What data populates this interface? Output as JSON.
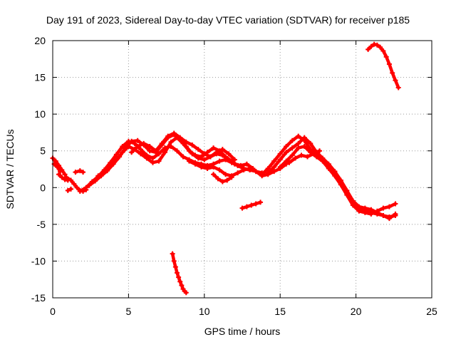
{
  "chart_data": {
    "type": "scatter",
    "title": "Day 191 of 2023, Sidereal Day-to-day VTEC variation (SDTVAR) for receiver p185",
    "xlabel": "GPS time / hours",
    "ylabel": "SDTVAR / TECUs",
    "xlim": [
      0,
      25
    ],
    "ylim": [
      -15,
      20
    ],
    "xticks": [
      0,
      5,
      10,
      15,
      20,
      25
    ],
    "yticks": [
      -15,
      -10,
      -5,
      0,
      5,
      10,
      15,
      20
    ],
    "grid": true,
    "marker": "+",
    "color": "#ff0000",
    "series": [
      {
        "name": "arc-a-early",
        "x": [
          0.0,
          0.2,
          0.4,
          0.6,
          0.8
        ],
        "y": [
          4.0,
          3.6,
          3.0,
          2.4,
          1.8
        ]
      },
      {
        "name": "arc-a-lower",
        "x": [
          0.1,
          0.3,
          0.5
        ],
        "y": [
          3.2,
          2.8,
          2.2
        ]
      },
      {
        "name": "arc-b",
        "x": [
          0.4,
          0.6,
          0.8,
          1.0
        ],
        "y": [
          1.8,
          1.4,
          1.1,
          1.0
        ]
      },
      {
        "name": "arc-c",
        "x": [
          0.9,
          1.2,
          1.4,
          1.6,
          1.8,
          2.0,
          2.2
        ],
        "y": [
          1.4,
          1.0,
          0.5,
          0.0,
          -0.4,
          -0.5,
          -0.3
        ]
      },
      {
        "name": "arc-c2",
        "x": [
          1.0,
          1.2
        ],
        "y": [
          -0.4,
          -0.2
        ]
      },
      {
        "name": "arc-d",
        "x": [
          1.5,
          1.8,
          2.0
        ],
        "y": [
          2.1,
          2.3,
          2.1
        ]
      },
      {
        "name": "arc-main-rise-1",
        "x": [
          1.8,
          2.2,
          2.6,
          3.0,
          3.4,
          3.8,
          4.2,
          4.6,
          5.0,
          5.4,
          5.8,
          6.2,
          6.6,
          7.0,
          7.4,
          7.8,
          8.2,
          8.6,
          9.0,
          9.4,
          9.8,
          10.2,
          10.6,
          11.0,
          11.4,
          11.8,
          12.2,
          12.6,
          13.0,
          13.4,
          13.8
        ],
        "y": [
          -0.5,
          0.0,
          0.8,
          1.5,
          2.4,
          3.4,
          4.5,
          5.6,
          6.3,
          6.0,
          5.2,
          4.4,
          4.0,
          4.6,
          5.4,
          5.6,
          5.0,
          4.2,
          3.8,
          3.4,
          3.2,
          3.0,
          3.2,
          3.6,
          3.8,
          3.4,
          3.0,
          2.6,
          2.4,
          2.2,
          2.0
        ]
      },
      {
        "name": "arc-main-rise-2",
        "x": [
          2.4,
          2.8,
          3.2,
          3.6,
          4.0,
          4.4,
          4.8,
          5.2,
          5.6,
          6.0,
          6.4,
          6.8,
          7.2,
          7.6,
          8.0,
          8.4,
          8.8,
          9.2,
          9.6,
          10.0,
          10.4,
          10.8,
          11.2,
          11.6,
          12.0,
          12.4,
          12.8,
          13.2
        ],
        "y": [
          0.3,
          0.9,
          1.6,
          2.3,
          3.2,
          4.2,
          5.4,
          6.3,
          6.4,
          5.8,
          5.0,
          4.8,
          5.8,
          6.8,
          7.2,
          6.6,
          5.6,
          4.6,
          4.0,
          3.8,
          4.2,
          4.6,
          4.4,
          3.8,
          3.2,
          3.0,
          3.2,
          2.6
        ]
      },
      {
        "name": "arc-main-rise-3",
        "x": [
          3.0,
          3.4,
          3.8,
          4.2,
          4.6,
          5.0,
          5.4,
          5.8,
          6.2,
          6.6,
          7.0,
          7.4,
          7.8,
          8.2,
          8.6,
          9.0,
          9.4,
          9.8,
          10.2,
          10.6,
          11.0,
          11.4,
          11.8,
          12.2,
          12.6,
          13.0
        ],
        "y": [
          1.6,
          2.2,
          3.0,
          3.8,
          4.8,
          5.6,
          5.2,
          4.6,
          4.0,
          3.4,
          3.6,
          4.8,
          6.2,
          6.8,
          6.0,
          5.0,
          4.4,
          4.2,
          4.8,
          5.4,
          5.0,
          4.2,
          3.6,
          3.0,
          2.6,
          2.4
        ]
      },
      {
        "name": "arc-mid-upper",
        "x": [
          5.2,
          5.6,
          6.0,
          6.4,
          6.8,
          7.2,
          7.6,
          8.0,
          8.4,
          8.8,
          9.2,
          9.6,
          10.0,
          10.4,
          10.8,
          11.2,
          11.6,
          12.0
        ],
        "y": [
          4.8,
          5.6,
          6.0,
          5.6,
          5.0,
          6.0,
          7.0,
          7.4,
          6.8,
          6.2,
          5.8,
          5.2,
          4.6,
          4.2,
          4.8,
          5.2,
          4.6,
          3.8
        ]
      },
      {
        "name": "arc-mid-lower",
        "x": [
          9.0,
          9.4,
          9.8,
          10.2,
          10.6,
          11.0,
          11.4,
          11.8,
          12.2,
          12.6,
          13.0,
          13.4,
          13.8,
          14.2,
          14.6,
          15.0,
          15.4
        ],
        "y": [
          3.6,
          3.2,
          2.8,
          2.6,
          2.8,
          2.4,
          1.8,
          1.6,
          2.0,
          2.4,
          2.6,
          2.2,
          1.6,
          1.8,
          2.2,
          2.6,
          3.2
        ]
      },
      {
        "name": "arc-dip",
        "x": [
          10.6,
          10.9,
          11.2,
          11.5,
          11.8
        ],
        "y": [
          1.8,
          1.2,
          0.8,
          1.0,
          1.4
        ]
      },
      {
        "name": "arc-late-1",
        "x": [
          13.8,
          14.2,
          14.6,
          15.0,
          15.4,
          15.8,
          16.2,
          16.6,
          17.0,
          17.4,
          17.8,
          18.2,
          18.6,
          19.0,
          19.4,
          19.8,
          20.2,
          20.6,
          21.0,
          21.4,
          21.8,
          22.2,
          22.6
        ],
        "y": [
          1.8,
          2.6,
          3.6,
          4.6,
          5.6,
          6.4,
          7.0,
          6.4,
          5.2,
          4.6,
          3.8,
          3.0,
          2.2,
          0.8,
          -0.8,
          -2.2,
          -3.0,
          -3.2,
          -3.4,
          -3.6,
          -3.8,
          -4.0,
          -3.8
        ]
      },
      {
        "name": "arc-late-2",
        "x": [
          14.2,
          14.6,
          15.0,
          15.4,
          15.8,
          16.2,
          16.6,
          17.0,
          17.4,
          17.8,
          18.2,
          18.6,
          19.0,
          19.4,
          19.8,
          20.2,
          20.6,
          21.0,
          21.4,
          21.8,
          22.2,
          22.6
        ],
        "y": [
          2.0,
          2.8,
          3.8,
          4.8,
          5.4,
          6.0,
          6.8,
          6.0,
          4.8,
          4.0,
          3.2,
          2.2,
          1.0,
          -0.4,
          -1.8,
          -2.6,
          -2.8,
          -3.0,
          -3.4,
          -3.8,
          -4.2,
          -3.6
        ]
      },
      {
        "name": "arc-late-3",
        "x": [
          15.0,
          15.4,
          15.8,
          16.2,
          16.6,
          17.0,
          17.4,
          17.8,
          18.2,
          18.6,
          19.0,
          19.4,
          19.8,
          20.2,
          20.6,
          21.0,
          21.4,
          21.8,
          22.2,
          22.6
        ],
        "y": [
          2.8,
          3.6,
          4.4,
          5.4,
          5.6,
          4.8,
          4.2,
          3.6,
          2.6,
          1.6,
          0.4,
          -1.0,
          -2.4,
          -3.2,
          -3.4,
          -3.6,
          -3.2,
          -2.8,
          -2.6,
          -2.2
        ]
      },
      {
        "name": "arc-late-4",
        "x": [
          15.6,
          16.0,
          16.4,
          16.8,
          17.2,
          17.6
        ],
        "y": [
          3.4,
          4.0,
          4.4,
          4.2,
          4.6,
          5.0
        ]
      },
      {
        "name": "arc-sep-mid",
        "x": [
          12.5,
          12.8,
          13.1,
          13.4,
          13.7
        ],
        "y": [
          -2.8,
          -2.6,
          -2.4,
          -2.2,
          -2.0
        ]
      },
      {
        "name": "arc-low-left",
        "x": [
          7.9,
          8.0,
          8.1,
          8.2,
          8.3,
          8.4,
          8.5,
          8.6,
          8.7,
          8.8
        ],
        "y": [
          -9.0,
          -10.0,
          -10.8,
          -11.6,
          -12.2,
          -12.8,
          -13.3,
          -13.8,
          -14.1,
          -14.3
        ]
      },
      {
        "name": "arc-high-right",
        "x": [
          20.8,
          21.0,
          21.2,
          21.4,
          21.6,
          21.8,
          22.0,
          22.2,
          22.4,
          22.6,
          22.8
        ],
        "y": [
          18.8,
          19.2,
          19.5,
          19.4,
          19.1,
          18.6,
          17.8,
          16.8,
          15.6,
          14.6,
          13.6
        ]
      }
    ]
  }
}
